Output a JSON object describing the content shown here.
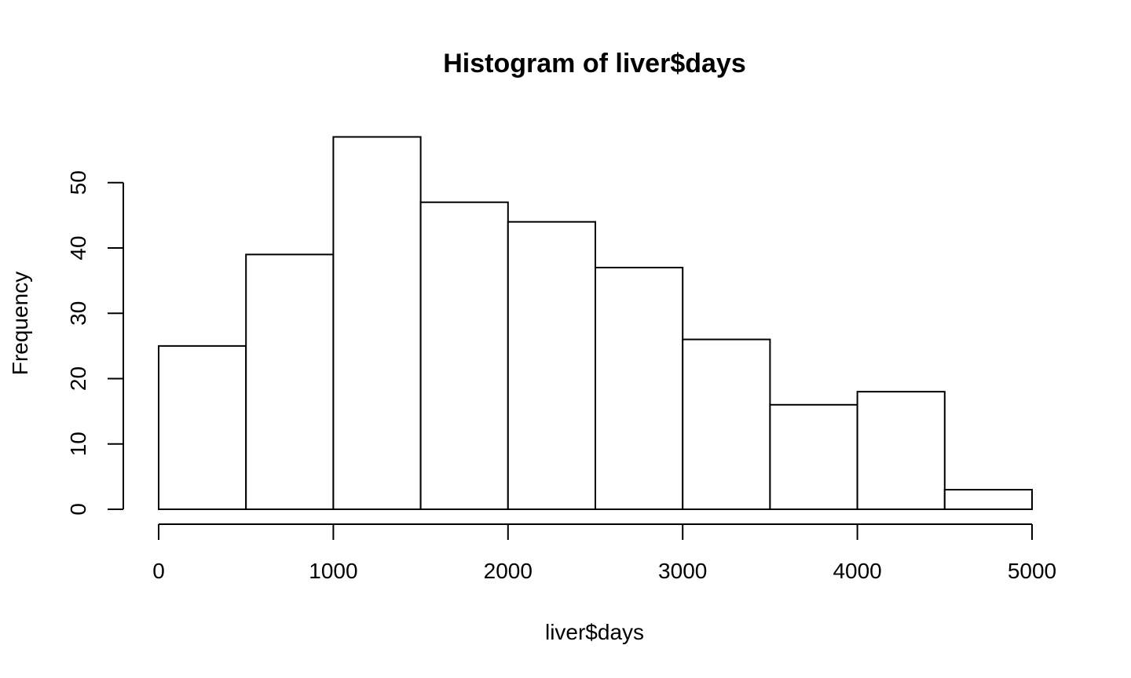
{
  "chart_data": {
    "type": "bar",
    "title": "Histogram of liver$days",
    "xlabel": "liver$days",
    "ylabel": "Frequency",
    "bins": [
      {
        "start": 0,
        "end": 500,
        "count": 25
      },
      {
        "start": 500,
        "end": 1000,
        "count": 39
      },
      {
        "start": 1000,
        "end": 1500,
        "count": 57
      },
      {
        "start": 1500,
        "end": 2000,
        "count": 47
      },
      {
        "start": 2000,
        "end": 2500,
        "count": 44
      },
      {
        "start": 2500,
        "end": 3000,
        "count": 37
      },
      {
        "start": 3000,
        "end": 3500,
        "count": 26
      },
      {
        "start": 3500,
        "end": 4000,
        "count": 16
      },
      {
        "start": 4000,
        "end": 4500,
        "count": 18
      },
      {
        "start": 4500,
        "end": 5000,
        "count": 3
      }
    ],
    "xlim": [
      0,
      5000
    ],
    "ylim": [
      0,
      57
    ],
    "x_ticks": [
      0,
      1000,
      2000,
      3000,
      4000,
      5000
    ],
    "y_ticks": [
      0,
      10,
      20,
      30,
      40,
      50
    ],
    "grid": false,
    "legend": "none"
  }
}
